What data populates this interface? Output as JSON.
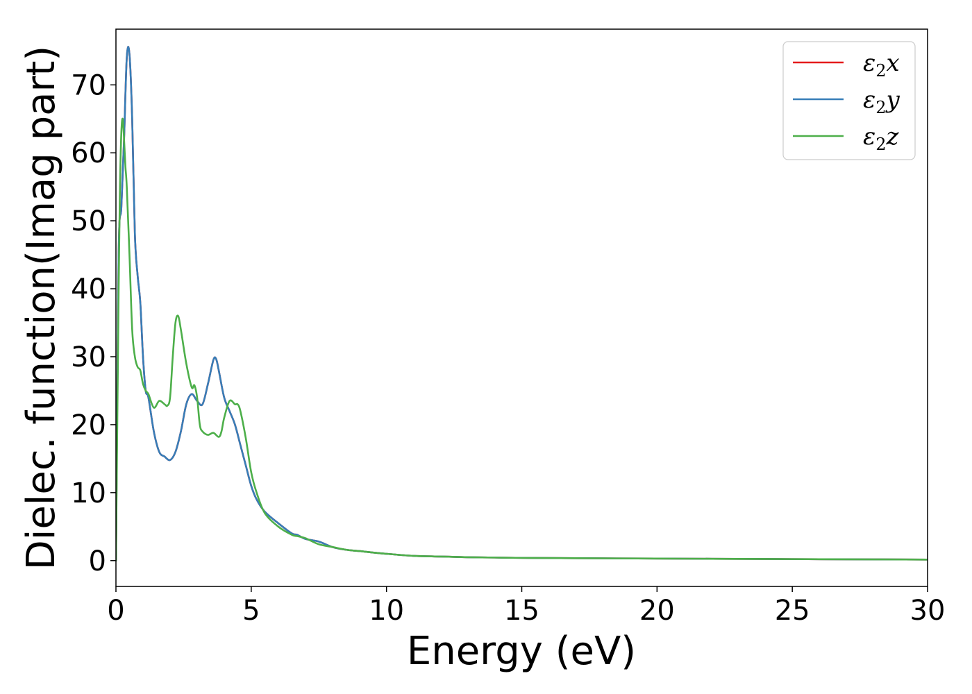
{
  "chart_data": {
    "type": "line",
    "title": "",
    "xlabel": "Energy (eV)",
    "ylabel": "Dielec. function(Imag part)",
    "xlim": [
      0,
      30
    ],
    "ylim": [
      -3.8,
      78.2
    ],
    "xticks": [
      0,
      5,
      10,
      15,
      20,
      25,
      30
    ],
    "xtick_labels": [
      "0",
      "5",
      "10",
      "15",
      "20",
      "25",
      "30"
    ],
    "yticks": [
      0,
      10,
      20,
      30,
      40,
      50,
      60,
      70
    ],
    "ytick_labels": [
      "0",
      "10",
      "20",
      "30",
      "40",
      "50",
      "60",
      "70"
    ],
    "grid": false,
    "legend_position": "top-right",
    "series": [
      {
        "name": "ε2x",
        "legend_base": "ε",
        "legend_sub": "2",
        "legend_var": "x",
        "color": "#e41a1c",
        "x": [
          0,
          0.1,
          0.2,
          0.3,
          0.4,
          0.5,
          0.6,
          0.7,
          0.8,
          0.9,
          1.0,
          1.1,
          1.2,
          1.4,
          1.6,
          1.8,
          2.0,
          2.2,
          2.4,
          2.6,
          2.8,
          3.0,
          3.2,
          3.4,
          3.6,
          3.7,
          3.8,
          4.0,
          4.2,
          4.4,
          4.6,
          4.8,
          5.0,
          5.2,
          5.5,
          6.0,
          6.5,
          6.7,
          7.0,
          7.5,
          8.0,
          8.5,
          9.0,
          10,
          11,
          12,
          13,
          14,
          15,
          17,
          20,
          22,
          25,
          28,
          30
        ],
        "y": [
          0,
          45,
          52,
          62,
          74,
          74.5,
          65,
          48,
          42,
          38,
          30,
          25,
          24,
          19,
          16,
          15.3,
          14.8,
          16,
          19,
          23,
          24.5,
          23.5,
          23,
          26,
          29.5,
          29.7,
          28,
          24,
          22,
          20,
          17,
          14,
          11,
          9,
          7.2,
          5.5,
          4,
          3.8,
          3.2,
          2.8,
          2.0,
          1.6,
          1.4,
          1.0,
          0.7,
          0.6,
          0.5,
          0.45,
          0.4,
          0.35,
          0.3,
          0.27,
          0.22,
          0.18,
          0.15
        ]
      },
      {
        "name": "ε2y",
        "legend_base": "ε",
        "legend_sub": "2",
        "legend_var": "y",
        "color": "#377eb8",
        "x": [
          0,
          0.1,
          0.2,
          0.3,
          0.4,
          0.5,
          0.6,
          0.7,
          0.8,
          0.9,
          1.0,
          1.1,
          1.2,
          1.4,
          1.6,
          1.8,
          2.0,
          2.2,
          2.4,
          2.6,
          2.8,
          3.0,
          3.2,
          3.4,
          3.6,
          3.7,
          3.8,
          4.0,
          4.2,
          4.4,
          4.6,
          4.8,
          5.0,
          5.2,
          5.5,
          6.0,
          6.5,
          6.7,
          7.0,
          7.5,
          8.0,
          8.5,
          9.0,
          10,
          11,
          12,
          13,
          14,
          15,
          17,
          20,
          22,
          25,
          28,
          30
        ],
        "y": [
          0,
          45,
          52,
          62,
          74,
          74.5,
          65,
          48,
          42,
          38,
          30,
          25,
          24,
          19,
          16,
          15.3,
          14.8,
          16,
          19,
          23,
          24.5,
          23.5,
          23,
          26,
          29.5,
          29.7,
          28,
          24,
          22,
          20,
          17,
          14,
          11,
          9,
          7.2,
          5.5,
          4,
          3.8,
          3.2,
          2.8,
          2.0,
          1.6,
          1.4,
          1.0,
          0.7,
          0.6,
          0.5,
          0.45,
          0.4,
          0.35,
          0.3,
          0.27,
          0.22,
          0.18,
          0.15
        ]
      },
      {
        "name": "ε2z",
        "legend_base": "ε",
        "legend_sub": "2",
        "legend_var": "z",
        "color": "#4daf4a",
        "x": [
          0,
          0.1,
          0.15,
          0.2,
          0.25,
          0.3,
          0.35,
          0.4,
          0.5,
          0.6,
          0.7,
          0.8,
          0.9,
          1.0,
          1.1,
          1.2,
          1.4,
          1.6,
          1.8,
          1.9,
          2.0,
          2.1,
          2.2,
          2.3,
          2.4,
          2.6,
          2.8,
          2.9,
          3.0,
          3.1,
          3.2,
          3.4,
          3.6,
          3.8,
          3.9,
          4.0,
          4.2,
          4.4,
          4.5,
          4.6,
          4.8,
          5.0,
          5.2,
          5.5,
          6.0,
          6.5,
          6.7,
          7.0,
          7.5,
          8.0,
          8.5,
          9.0,
          10,
          11,
          12,
          13,
          14,
          15,
          17,
          20,
          22,
          25,
          28,
          30
        ],
        "y": [
          0,
          40,
          55,
          63,
          65,
          62,
          58,
          55,
          45,
          34,
          30,
          28.5,
          28,
          26,
          25,
          24.5,
          22.5,
          23.5,
          23,
          22.8,
          24,
          30,
          35,
          36,
          34,
          29,
          25.5,
          25.8,
          24,
          20,
          19,
          18.5,
          18.8,
          18.2,
          19,
          21,
          23.5,
          23,
          23,
          22,
          18,
          13,
          10,
          7,
          5,
          3.8,
          3.6,
          3.3,
          2.4,
          2.0,
          1.6,
          1.4,
          1.0,
          0.7,
          0.6,
          0.5,
          0.45,
          0.4,
          0.35,
          0.3,
          0.27,
          0.22,
          0.18,
          0.15
        ]
      }
    ]
  }
}
